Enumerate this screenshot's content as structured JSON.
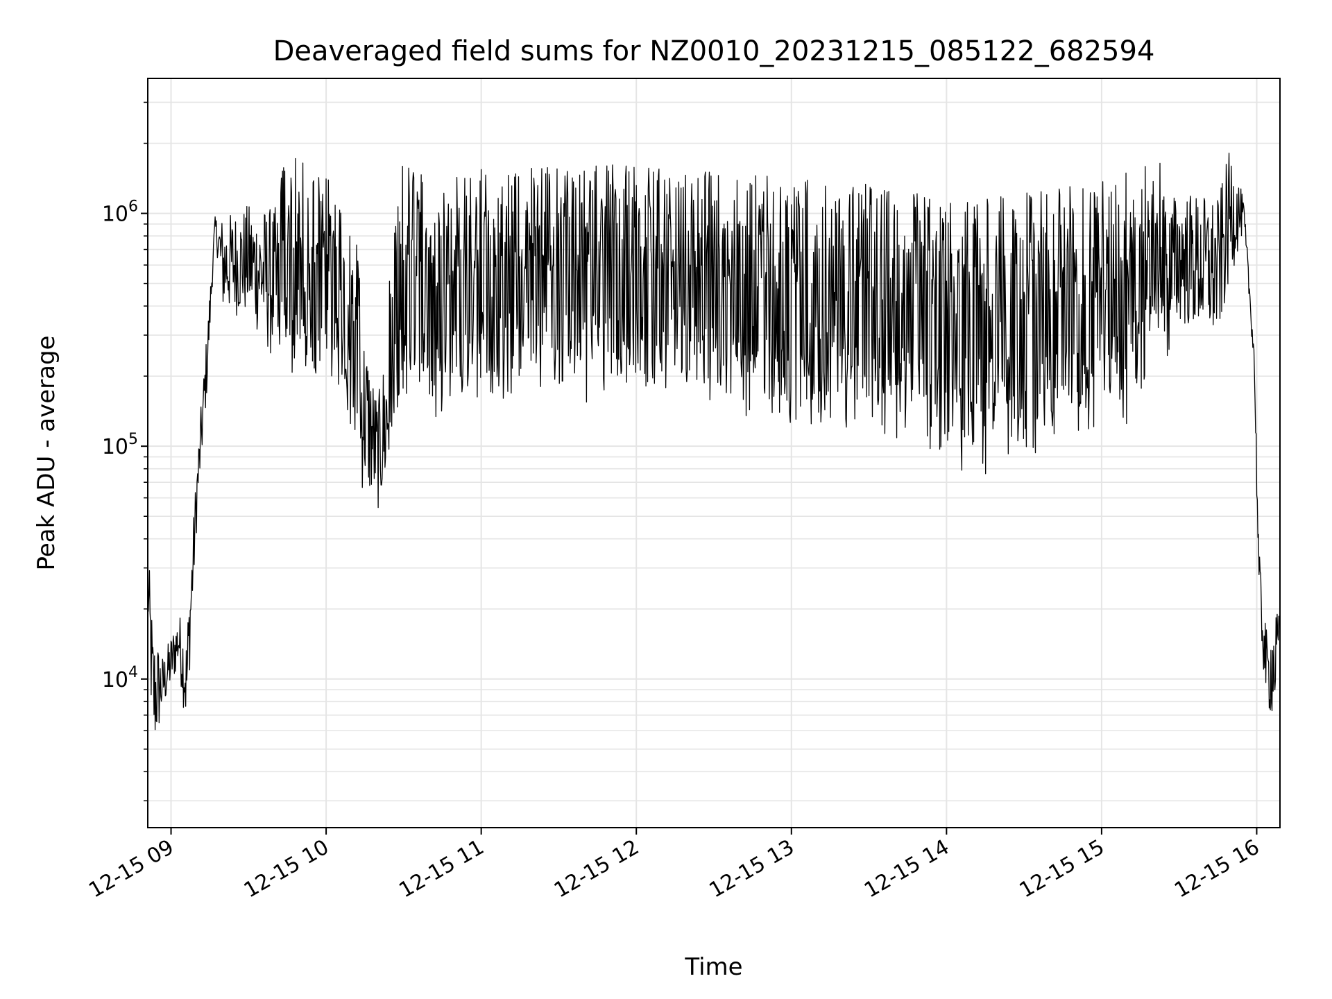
{
  "chart_data": {
    "type": "line",
    "title": "Deaveraged field sums for NZ0010_20231215_085122_682594",
    "xlabel": "Time",
    "ylabel": "Peak ADU - average",
    "x_ticks": [
      "12-15 09",
      "12-15 10",
      "12-15 11",
      "12-15 12",
      "12-15 13",
      "12-15 14",
      "12-15 15",
      "12-15 16"
    ],
    "xlim": [
      "2023-12-15 08:51",
      "2023-12-15 16:09"
    ],
    "ylim": [
      2300,
      3800000
    ],
    "y_scale": "log",
    "y_ticks": [
      {
        "value": 10000,
        "base": "10",
        "exp": "4"
      },
      {
        "value": 100000,
        "base": "10",
        "exp": "5"
      },
      {
        "value": 1000000,
        "base": "10",
        "exp": "6"
      }
    ],
    "grid": "major and minor",
    "line_color": "#000000",
    "grid_color": "#e5e5e5",
    "series": [
      {
        "envelope": [
          {
            "time": "2023-12-15 08:51",
            "low": 15000,
            "high": 45000
          },
          {
            "time": "2023-12-15 08:53",
            "low": 3200,
            "high": 23000
          },
          {
            "time": "2023-12-15 08:57",
            "low": 6500,
            "high": 14000
          },
          {
            "time": "2023-12-15 09:03",
            "low": 10000,
            "high": 22000
          },
          {
            "time": "2023-12-15 09:06",
            "low": 4600,
            "high": 20000
          },
          {
            "time": "2023-12-15 09:10",
            "low": 40000,
            "high": 100000
          },
          {
            "time": "2023-12-15 09:14",
            "low": 150000,
            "high": 380000
          },
          {
            "time": "2023-12-15 09:17",
            "low": 800000,
            "high": 1000000
          },
          {
            "time": "2023-12-15 09:20",
            "low": 300000,
            "high": 1200000
          },
          {
            "time": "2023-12-15 09:30",
            "low": 280000,
            "high": 1400000
          },
          {
            "time": "2023-12-15 09:40",
            "low": 160000,
            "high": 1500000
          },
          {
            "time": "2023-12-15 09:45",
            "low": 80000,
            "high": 1800000
          },
          {
            "time": "2023-12-15 09:50",
            "low": 65000,
            "high": 1700000
          },
          {
            "time": "2023-12-15 10:00",
            "low": 60000,
            "high": 1500000
          },
          {
            "time": "2023-12-15 10:10",
            "low": 45000,
            "high": 1000000
          },
          {
            "time": "2023-12-15 10:20",
            "low": 42000,
            "high": 200000
          },
          {
            "time": "2023-12-15 10:30",
            "low": 40000,
            "high": 1800000
          },
          {
            "time": "2023-12-15 10:40",
            "low": 42000,
            "high": 1400000
          },
          {
            "time": "2023-12-15 10:50",
            "low": 50000,
            "high": 1500000
          },
          {
            "time": "2023-12-15 11:00",
            "low": 50000,
            "high": 1550000
          },
          {
            "time": "2023-12-15 11:30",
            "low": 55000,
            "high": 1650000
          },
          {
            "time": "2023-12-15 12:00",
            "low": 48000,
            "high": 1600000
          },
          {
            "time": "2023-12-15 12:30",
            "low": 45000,
            "high": 1550000
          },
          {
            "time": "2023-12-15 13:00",
            "low": 38000,
            "high": 1450000
          },
          {
            "time": "2023-12-15 13:30",
            "low": 30000,
            "high": 1350000
          },
          {
            "time": "2023-12-15 14:00",
            "low": 25000,
            "high": 1150000
          },
          {
            "time": "2023-12-15 14:15",
            "low": 21000,
            "high": 1200000
          },
          {
            "time": "2023-12-15 14:30",
            "low": 25000,
            "high": 1250000
          },
          {
            "time": "2023-12-15 15:00",
            "low": 30000,
            "high": 1400000
          },
          {
            "time": "2023-12-15 15:15",
            "low": 45000,
            "high": 1700000
          },
          {
            "time": "2023-12-15 15:30",
            "low": 250000,
            "high": 1700000
          },
          {
            "time": "2023-12-15 15:45",
            "low": 200000,
            "high": 1600000
          },
          {
            "time": "2023-12-15 15:50",
            "low": 400000,
            "high": 2600000
          },
          {
            "time": "2023-12-15 15:55",
            "low": 800000,
            "high": 1200000
          },
          {
            "time": "2023-12-15 15:59",
            "low": 200000,
            "high": 300000
          },
          {
            "time": "2023-12-15 16:01",
            "low": 15000,
            "high": 40000
          },
          {
            "time": "2023-12-15 16:04",
            "low": 6000,
            "high": 18000
          },
          {
            "time": "2023-12-15 16:07",
            "low": 5500,
            "high": 25000
          },
          {
            "time": "2023-12-15 16:09",
            "low": 13000,
            "high": 20000
          }
        ]
      }
    ]
  }
}
